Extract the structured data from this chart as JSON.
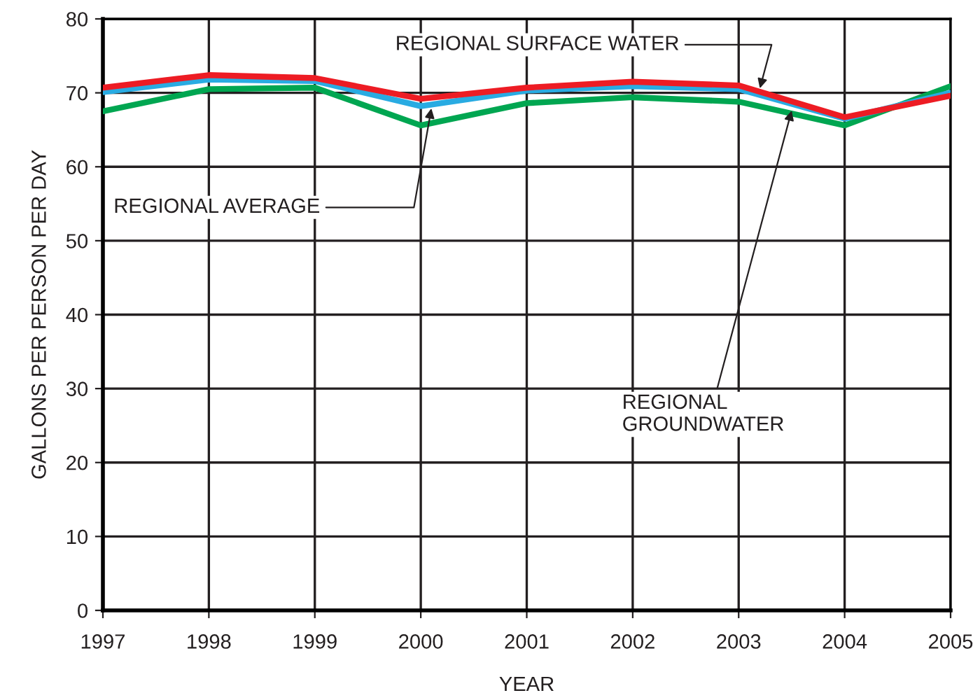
{
  "chart_data": {
    "type": "line",
    "xlabel": "YEAR",
    "ylabel": "GALLONS PER PERSON PER DAY",
    "x": [
      1997,
      1998,
      1999,
      2000,
      2001,
      2002,
      2003,
      2004,
      2005
    ],
    "series": [
      {
        "color": "#00a651",
        "values": [
          67.5,
          70.5,
          70.7,
          65.6,
          68.6,
          69.4,
          68.8,
          65.6,
          70.9
        ]
      },
      {
        "color": "#29abe2",
        "values": [
          70.1,
          71.8,
          71.6,
          68.2,
          70.3,
          70.9,
          70.5,
          66.5,
          70.0
        ]
      },
      {
        "color": "#ed1c24",
        "values": [
          70.7,
          72.4,
          72.0,
          69.2,
          70.7,
          71.5,
          71.0,
          66.7,
          69.6
        ]
      }
    ],
    "annotations": [
      {
        "text": "REGIONAL SURFACE WATER",
        "x": 2003.2,
        "y": 70.6
      },
      {
        "text": "REGIONAL AVERAGE",
        "x": 2000.1,
        "y": 67.9
      },
      {
        "text": "REGIONAL\nGROUNDWATER",
        "x": 2003.5,
        "y": 67.6
      }
    ],
    "xlim": [
      1997,
      2005
    ],
    "ylim": [
      0,
      80
    ],
    "xticks": [
      1997,
      1998,
      1999,
      2000,
      2001,
      2002,
      2003,
      2004,
      2005
    ],
    "yticks": [
      0,
      10,
      20,
      30,
      40,
      50,
      60,
      70,
      80
    ],
    "grid": true,
    "line_style": "solid",
    "marker": "none"
  }
}
